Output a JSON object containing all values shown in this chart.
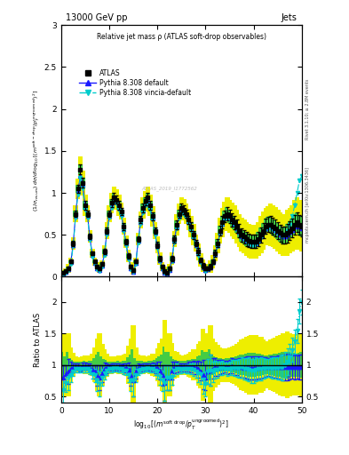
{
  "title_top": "13000 GeV pp",
  "title_right": "Jets",
  "plot_title": "Relative jet mass ρ (ATLAS soft-drop observables)",
  "ylabel_ratio": "Ratio to ATLAS",
  "right_label_top": "Rivet 3.1.10; ≥ 2.8M events",
  "right_label_bot": "mcplots.cern.ch [arXiv:1306.3436]",
  "watermark": "ATLAS_2019_I1772562",
  "xlim": [
    0,
    50
  ],
  "ylim_main": [
    0,
    3
  ],
  "ylim_ratio": [
    0.4,
    2.4
  ],
  "x_ticks_bot": [
    0,
    10,
    20,
    30,
    40,
    50
  ],
  "x_data": [
    0.5,
    1.0,
    1.5,
    2.0,
    2.5,
    3.0,
    3.5,
    4.0,
    4.5,
    5.0,
    5.5,
    6.0,
    6.5,
    7.0,
    7.5,
    8.0,
    8.5,
    9.0,
    9.5,
    10.0,
    10.5,
    11.0,
    11.5,
    12.0,
    12.5,
    13.0,
    13.5,
    14.0,
    14.5,
    15.0,
    15.5,
    16.0,
    16.5,
    17.0,
    17.5,
    18.0,
    18.5,
    19.0,
    19.5,
    20.0,
    20.5,
    21.0,
    21.5,
    22.0,
    22.5,
    23.0,
    23.5,
    24.0,
    24.5,
    25.0,
    25.5,
    26.0,
    26.5,
    27.0,
    27.5,
    28.0,
    28.5,
    29.0,
    29.5,
    30.0,
    30.5,
    31.0,
    31.5,
    32.0,
    32.5,
    33.0,
    33.5,
    34.0,
    34.5,
    35.0,
    35.5,
    36.0,
    36.5,
    37.0,
    37.5,
    38.0,
    38.5,
    39.0,
    39.5,
    40.0,
    40.5,
    41.0,
    41.5,
    42.0,
    42.5,
    43.0,
    43.5,
    44.0,
    44.5,
    45.0,
    45.5,
    46.0,
    46.5,
    47.0,
    47.5,
    48.0,
    48.5,
    49.0,
    49.5,
    50.0
  ],
  "atlas_y": [
    0.05,
    0.07,
    0.1,
    0.18,
    0.4,
    0.75,
    1.05,
    1.28,
    1.12,
    0.85,
    0.75,
    0.48,
    0.28,
    0.18,
    0.12,
    0.1,
    0.15,
    0.3,
    0.55,
    0.75,
    0.88,
    0.95,
    0.92,
    0.85,
    0.78,
    0.6,
    0.42,
    0.25,
    0.12,
    0.08,
    0.18,
    0.45,
    0.68,
    0.82,
    0.9,
    0.95,
    0.85,
    0.72,
    0.55,
    0.38,
    0.22,
    0.12,
    0.07,
    0.05,
    0.1,
    0.22,
    0.45,
    0.62,
    0.75,
    0.82,
    0.8,
    0.75,
    0.68,
    0.6,
    0.5,
    0.4,
    0.3,
    0.2,
    0.13,
    0.1,
    0.1,
    0.12,
    0.18,
    0.28,
    0.4,
    0.55,
    0.65,
    0.72,
    0.75,
    0.72,
    0.68,
    0.65,
    0.6,
    0.55,
    0.5,
    0.48,
    0.45,
    0.43,
    0.42,
    0.42,
    0.42,
    0.45,
    0.5,
    0.55,
    0.6,
    0.62,
    0.62,
    0.6,
    0.58,
    0.55,
    0.52,
    0.5,
    0.5,
    0.52,
    0.55,
    0.58,
    0.62,
    0.65,
    0.62,
    0.6
  ],
  "atlas_yerr": [
    0.01,
    0.01,
    0.02,
    0.02,
    0.03,
    0.04,
    0.05,
    0.06,
    0.06,
    0.05,
    0.04,
    0.03,
    0.02,
    0.02,
    0.02,
    0.02,
    0.02,
    0.03,
    0.04,
    0.04,
    0.05,
    0.05,
    0.05,
    0.05,
    0.04,
    0.04,
    0.03,
    0.03,
    0.02,
    0.02,
    0.02,
    0.03,
    0.04,
    0.05,
    0.05,
    0.05,
    0.05,
    0.05,
    0.04,
    0.04,
    0.03,
    0.02,
    0.02,
    0.01,
    0.02,
    0.03,
    0.04,
    0.05,
    0.05,
    0.05,
    0.05,
    0.05,
    0.05,
    0.05,
    0.05,
    0.04,
    0.04,
    0.03,
    0.03,
    0.02,
    0.02,
    0.03,
    0.03,
    0.04,
    0.05,
    0.06,
    0.07,
    0.07,
    0.08,
    0.08,
    0.08,
    0.08,
    0.08,
    0.08,
    0.08,
    0.08,
    0.08,
    0.08,
    0.08,
    0.08,
    0.08,
    0.08,
    0.09,
    0.09,
    0.09,
    0.09,
    0.1,
    0.1,
    0.1,
    0.1,
    0.1,
    0.1,
    0.1,
    0.11,
    0.11,
    0.11,
    0.12,
    0.12,
    0.12,
    0.12
  ],
  "py_default_y": [
    0.04,
    0.06,
    0.09,
    0.17,
    0.38,
    0.73,
    1.02,
    1.2,
    1.1,
    0.83,
    0.73,
    0.46,
    0.26,
    0.16,
    0.1,
    0.08,
    0.13,
    0.28,
    0.52,
    0.72,
    0.85,
    0.92,
    0.89,
    0.82,
    0.75,
    0.57,
    0.4,
    0.23,
    0.1,
    0.06,
    0.16,
    0.43,
    0.65,
    0.79,
    0.87,
    0.92,
    0.82,
    0.7,
    0.52,
    0.36,
    0.2,
    0.1,
    0.05,
    0.04,
    0.08,
    0.2,
    0.43,
    0.6,
    0.72,
    0.79,
    0.77,
    0.72,
    0.66,
    0.58,
    0.48,
    0.38,
    0.28,
    0.18,
    0.11,
    0.08,
    0.09,
    0.11,
    0.17,
    0.27,
    0.38,
    0.53,
    0.63,
    0.7,
    0.72,
    0.7,
    0.67,
    0.63,
    0.58,
    0.53,
    0.48,
    0.46,
    0.43,
    0.41,
    0.4,
    0.4,
    0.4,
    0.43,
    0.48,
    0.53,
    0.58,
    0.6,
    0.6,
    0.58,
    0.56,
    0.53,
    0.5,
    0.48,
    0.48,
    0.5,
    0.53,
    0.56,
    0.6,
    0.63,
    0.6,
    0.58
  ],
  "py_vincia_y": [
    0.03,
    0.05,
    0.08,
    0.15,
    0.36,
    0.7,
    0.98,
    1.18,
    1.05,
    0.8,
    0.7,
    0.44,
    0.24,
    0.15,
    0.09,
    0.07,
    0.12,
    0.26,
    0.5,
    0.7,
    0.82,
    0.9,
    0.87,
    0.8,
    0.73,
    0.55,
    0.38,
    0.21,
    0.09,
    0.06,
    0.15,
    0.41,
    0.63,
    0.77,
    0.85,
    0.9,
    0.8,
    0.68,
    0.5,
    0.34,
    0.18,
    0.09,
    0.05,
    0.04,
    0.08,
    0.18,
    0.41,
    0.58,
    0.7,
    0.76,
    0.75,
    0.7,
    0.64,
    0.56,
    0.46,
    0.36,
    0.26,
    0.17,
    0.1,
    0.07,
    0.09,
    0.11,
    0.16,
    0.26,
    0.37,
    0.52,
    0.62,
    0.68,
    0.7,
    0.68,
    0.65,
    0.62,
    0.57,
    0.52,
    0.48,
    0.45,
    0.42,
    0.4,
    0.38,
    0.38,
    0.39,
    0.42,
    0.47,
    0.52,
    0.57,
    0.59,
    0.59,
    0.57,
    0.55,
    0.52,
    0.5,
    0.48,
    0.5,
    0.55,
    0.62,
    0.72,
    0.85,
    1.0,
    1.15,
    1.2
  ],
  "color_atlas": "#000000",
  "color_default": "#1a1aff",
  "color_vincia": "#00cccc",
  "color_green_band": "#44cc44",
  "color_yellow_band": "#eeee00",
  "atlas_marker": "s",
  "default_marker": "^",
  "vincia_marker": "v"
}
